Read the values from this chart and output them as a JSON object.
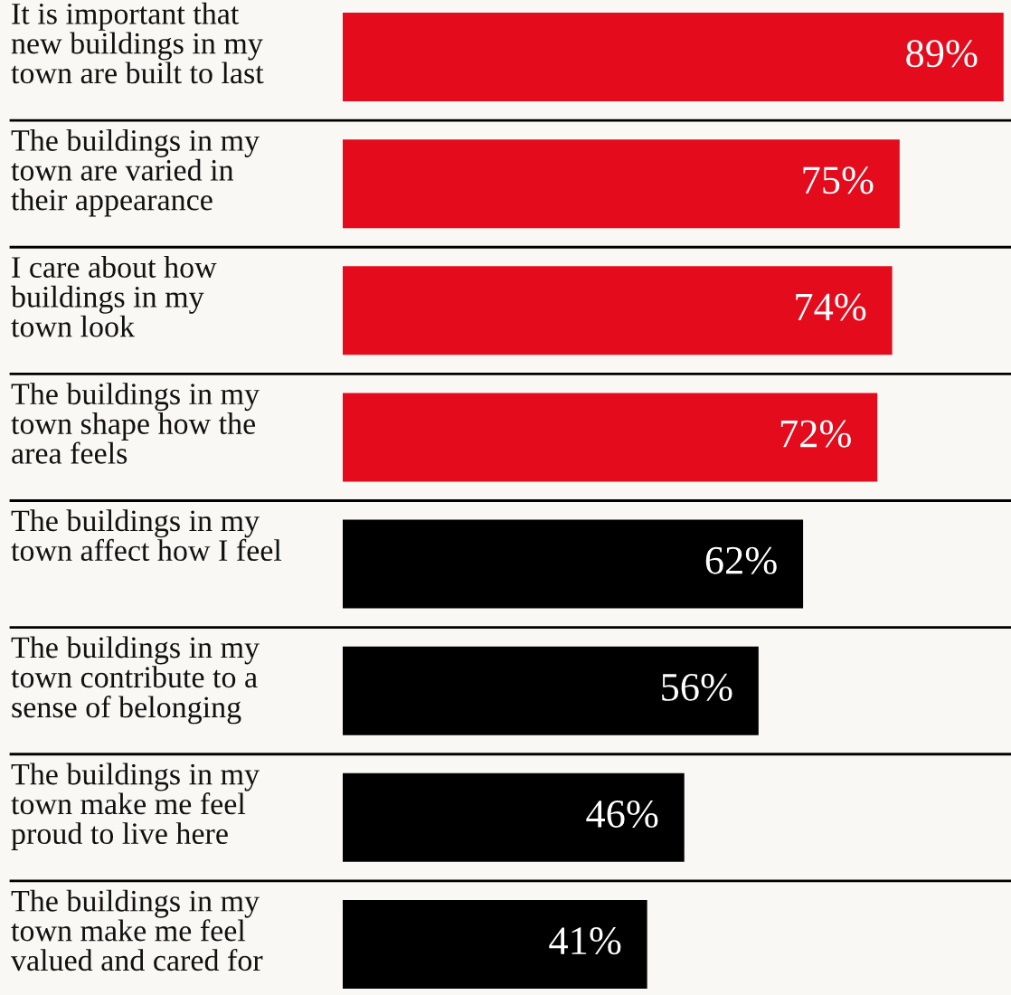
{
  "chart_data": {
    "type": "bar",
    "orientation": "horizontal",
    "categories": [
      "It is important that\nnew buildings in my\ntown are built to last",
      "The buildings in my\ntown are varied in\ntheir appearance",
      "I care about how\nbuildings in my\ntown look",
      "The buildings in my\ntown shape how the\narea feels",
      "The buildings in my\ntown affect how I feel",
      "The buildings in my\ntown contribute to a\nsense of belonging",
      "The buildings in my\ntown make me feel\nproud to live here",
      "The buildings in my\ntown make me feel\nvalued and cared for"
    ],
    "values": [
      89,
      75,
      74,
      72,
      62,
      56,
      46,
      41
    ],
    "value_labels": [
      "89%",
      "75%",
      "74%",
      "72%",
      "62%",
      "56%",
      "46%",
      "41%"
    ],
    "colors": [
      "#e30b1c",
      "#e30b1c",
      "#e30b1c",
      "#e30b1c",
      "#000000",
      "#000000",
      "#000000",
      "#000000"
    ],
    "xlim": [
      0,
      90
    ],
    "grid": "y"
  }
}
